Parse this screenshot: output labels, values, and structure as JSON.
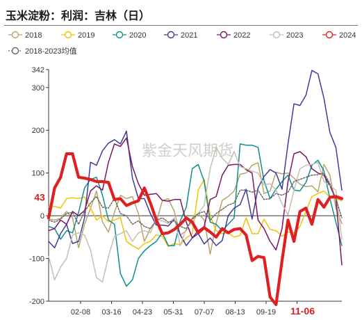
{
  "chart_data": {
    "type": "line",
    "title": "玉米淀粉：利润：吉林（日）",
    "watermark": "紫金天风期货",
    "xlabel": "",
    "ylabel": "",
    "x_ticks": [
      "02-08",
      "03-16",
      "04-23",
      "05-31",
      "07-07",
      "08-13",
      "09-19",
      "11-06"
    ],
    "highlighted_x_tick": "11-06",
    "y_ticks": [
      -200,
      -100,
      0,
      100,
      200,
      300,
      342
    ],
    "ylim": [
      -200,
      342
    ],
    "highlighted_label": "43",
    "grid": false,
    "legend_position": "top",
    "series": [
      {
        "name": "2018",
        "color": "#b8a36a",
        "dashed": false,
        "values": [
          -8,
          -10,
          -6,
          10,
          -5,
          -75,
          -20,
          18,
          58,
          -15,
          -38,
          8,
          48,
          40,
          45,
          5,
          -60,
          -30,
          -15,
          35,
          40,
          10,
          -45,
          -35,
          -5,
          5,
          -10,
          -90,
          -18,
          36,
          45,
          58,
          97,
          100,
          118,
          124,
          52,
          58,
          102,
          98,
          100,
          88,
          74,
          68,
          70,
          56,
          120,
          95,
          18,
          -18
        ]
      },
      {
        "name": "2019",
        "color": "#f2c200",
        "dashed": false,
        "values": [
          20,
          22,
          18,
          40,
          42,
          40,
          44,
          18,
          -10,
          0,
          -14,
          -10,
          -4,
          -60,
          -70,
          -78,
          -65,
          -60,
          -45,
          -48,
          -72,
          -65,
          -68,
          -52,
          -42,
          60,
          85,
          0,
          -35,
          -42,
          -40,
          -50,
          -46,
          -5,
          -42,
          -42,
          -8,
          -32,
          -35,
          -48,
          -38,
          -40,
          -25,
          10,
          45,
          52,
          58,
          43,
          40,
          35
        ]
      },
      {
        "name": "2020",
        "color": "#0e8f8c",
        "dashed": false,
        "values": [
          -25,
          -30,
          -55,
          -35,
          -40,
          8,
          65,
          85,
          90,
          48,
          -10,
          -20,
          -135,
          -165,
          -150,
          -100,
          -82,
          -70,
          -60,
          -40,
          -70,
          -70,
          -12,
          20,
          110,
          120,
          80,
          -15,
          -20,
          -35,
          -20,
          -5,
          168,
          165,
          165,
          160,
          82,
          40,
          62,
          80,
          95,
          60,
          58,
          78,
          118,
          130,
          105,
          40,
          -15,
          -70
        ]
      },
      {
        "name": "2021",
        "color": "#3f3a9a",
        "dashed": false,
        "values": [
          -60,
          -75,
          -42,
          -20,
          -65,
          -60,
          -5,
          125,
          118,
          152,
          170,
          178,
          168,
          198,
          88,
          40,
          40,
          5,
          -22,
          -22,
          -24,
          -8,
          -45,
          -70,
          -52,
          -42,
          -66,
          -52,
          -70,
          -58,
          0,
          18,
          26,
          62,
          -8,
          65,
          92,
          108,
          100,
          62,
          168,
          262,
          258,
          282,
          340,
          332,
          275,
          195,
          160,
          60
        ]
      },
      {
        "name": "2022",
        "color": "#7a1464",
        "dashed": false,
        "values": [
          -35,
          -30,
          -10,
          -20,
          10,
          0,
          12,
          58,
          70,
          60,
          125,
          168,
          162,
          182,
          115,
          75,
          48,
          50,
          52,
          36,
          34,
          38,
          38,
          -15,
          -52,
          -35,
          -25,
          38,
          45,
          95,
          118,
          120,
          120,
          108,
          100,
          -10,
          -30,
          -60,
          -80,
          -30,
          80,
          145,
          150,
          138,
          110,
          100,
          95,
          70,
          40,
          -115
        ]
      },
      {
        "name": "2023",
        "color": "#c8beac",
        "dashed": false,
        "values": [
          -95,
          -150,
          -120,
          -100,
          -45,
          -40,
          -45,
          -80,
          -145,
          -155,
          -95,
          -48,
          -42,
          -35,
          -60,
          -40,
          -35,
          -40,
          -8,
          -12,
          -18,
          -5,
          -70,
          -30,
          -15,
          5,
          25,
          110,
          160,
          135,
          120,
          150,
          115,
          110,
          104,
          100,
          72,
          75,
          60,
          28,
          2,
          60,
          110,
          118,
          120,
          125,
          80,
          70,
          60,
          -55
        ]
      },
      {
        "name": "2024",
        "color": "#e02020",
        "dashed": false,
        "values": [
          -5,
          65,
          90,
          145,
          145,
          90,
          88,
          85,
          80,
          80,
          78,
          38,
          40,
          24,
          30,
          35,
          65,
          30,
          -10,
          -42,
          -40,
          -32,
          -20,
          -5,
          -15,
          -40,
          -28,
          -38,
          -50,
          -30,
          -40,
          -32,
          -30,
          -45,
          -105,
          -95,
          -98,
          -190,
          -208,
          -105,
          -10,
          -60,
          10,
          18,
          -20,
          38,
          20,
          43,
          45,
          40
        ]
      },
      {
        "name": "2018-2023均值",
        "color": "#666666",
        "dashed": true,
        "values": [
          -10,
          -15,
          -8,
          5,
          8,
          -20,
          10,
          30,
          45,
          20,
          18,
          40,
          5,
          0,
          -20,
          -12,
          -25,
          -30,
          -10,
          -5,
          -15,
          -12,
          -25,
          -30,
          -8,
          5,
          10,
          -10,
          5,
          15,
          25,
          30,
          60,
          60,
          55,
          60,
          38,
          40,
          52,
          48,
          55,
          80,
          85,
          90,
          95,
          96,
          100,
          75,
          40,
          -5
        ]
      }
    ]
  }
}
